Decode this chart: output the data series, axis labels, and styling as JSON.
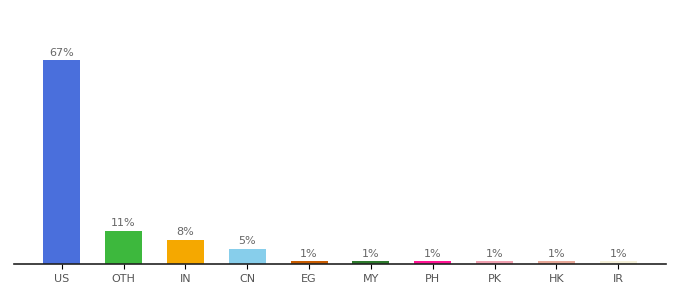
{
  "categories": [
    "US",
    "OTH",
    "IN",
    "CN",
    "EG",
    "MY",
    "PH",
    "PK",
    "HK",
    "IR"
  ],
  "values": [
    67,
    11,
    8,
    5,
    1,
    1,
    1,
    1,
    1,
    1
  ],
  "bar_colors": [
    "#4a6fdc",
    "#3db83d",
    "#f5a800",
    "#87ceeb",
    "#c85c00",
    "#2d7a2d",
    "#ff1493",
    "#f0a0b0",
    "#e8a898",
    "#f5f0d8"
  ],
  "ylim": [
    0,
    75
  ],
  "bar_width": 0.6,
  "label_fontsize": 8,
  "tick_fontsize": 8,
  "background_color": "#ffffff",
  "label_color": "#666666",
  "tick_color": "#555555"
}
